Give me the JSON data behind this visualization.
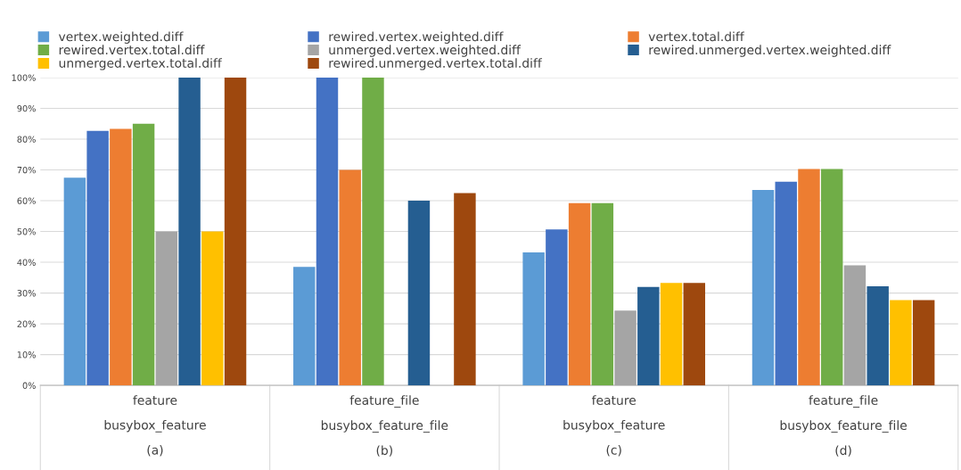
{
  "chart_data": {
    "type": "bar",
    "categories": [
      "feature\nbusybox_feature\n(a)",
      "feature_file\nbusybox_feature_file\n(b)",
      "feature\nbusybox_feature\n(c)",
      "feature_file\nbusybox_feature_file\n(d)"
    ],
    "series": [
      {
        "name": "vertex.weighted.diff",
        "color": "#5b9bd5",
        "values": [
          67.5,
          38.5,
          43.2,
          63.5
        ]
      },
      {
        "name": "rewired.vertex.weighted.diff",
        "color": "#4472c4",
        "values": [
          82.7,
          100,
          50.7,
          66.2
        ]
      },
      {
        "name": "vertex.total.diff",
        "color": "#ed7d31",
        "values": [
          83.3,
          70,
          59.2,
          70.3
        ]
      },
      {
        "name": "rewired.vertex.total.diff",
        "color": "#70ad47",
        "values": [
          85,
          100,
          59.2,
          70.3
        ]
      },
      {
        "name": "unmerged.vertex.weighted.diff",
        "color": "#a5a5a5",
        "values": [
          50,
          null,
          24.3,
          39
        ]
      },
      {
        "name": "rewired.unmerged.vertex.weighted.diff",
        "color": "#255e91",
        "values": [
          100,
          60,
          32,
          32.2
        ]
      },
      {
        "name": "unmerged.vertex.total.diff",
        "color": "#ffc000",
        "values": [
          50,
          null,
          33.3,
          27.7
        ]
      },
      {
        "name": "rewired.unmerged.vertex.total.diff",
        "color": "#9e480e",
        "values": [
          100,
          62.5,
          33.3,
          27.7
        ]
      }
    ],
    "ylim": [
      0,
      100
    ],
    "yticks": [
      {
        "value": 0,
        "label": "0%"
      },
      {
        "value": 10,
        "label": "10%"
      },
      {
        "value": 20,
        "label": "20%"
      },
      {
        "value": 30,
        "label": "30%"
      },
      {
        "value": 40,
        "label": "40%"
      },
      {
        "value": 50,
        "label": "50%"
      },
      {
        "value": 60,
        "label": "60%"
      },
      {
        "value": 70,
        "label": "70%"
      },
      {
        "value": 80,
        "label": "80%"
      },
      {
        "value": 90,
        "label": "90%"
      },
      {
        "value": 100,
        "label": "100%"
      }
    ],
    "grid": "y",
    "legend": "top"
  }
}
